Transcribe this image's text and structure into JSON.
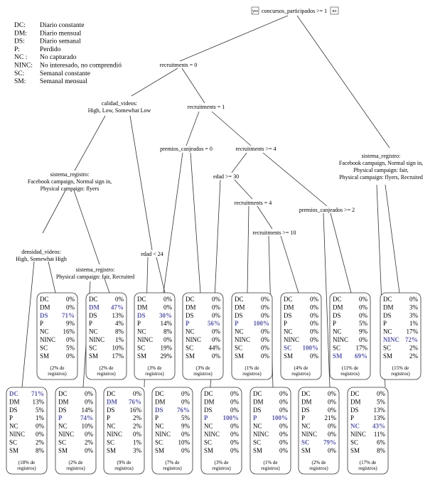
{
  "legend": [
    {
      "code": "DC:",
      "desc": "Diario constante"
    },
    {
      "code": "DM:",
      "desc": "Diario mensual"
    },
    {
      "code": "DS:",
      "desc": "Diario semanal"
    },
    {
      "code": "P:",
      "desc": "Perdido"
    },
    {
      "code": "NC :",
      "desc": "No capturado"
    },
    {
      "code": "NINC:",
      "desc": "No interesado, no comprendió"
    },
    {
      "code": "SC:",
      "desc": "Semanal constante"
    },
    {
      "code": "SM:",
      "desc": "Semanal mensual"
    }
  ],
  "root": {
    "label": "concursos_participados >= 1",
    "yes": "yes",
    "no": "no"
  },
  "splits": {
    "s1": "recruitments = 0",
    "s2a": "calidad_videos:",
    "s2b": "High, Low, Somewhat Low",
    "s3": "recruitments = 1",
    "s4": "premios_canjeados = 0",
    "s5": "recruitments >= 4",
    "s6a": "sistema_registro:",
    "s6b": "Facebook campaign, Normal sign in,",
    "s6c": "Physical campaign: flyers",
    "s7": "edad >= 30",
    "s8": "recruitments = 4",
    "s9": "recruitments >= 10",
    "s10": "premios_canjeados >= 2",
    "s11a": "sistema_registro:",
    "s11b": "Facebook campaign, Normal sign in,",
    "s11c": "Physical campaign: fair,",
    "s11d": "Physical campaign: flyers, Recruited",
    "s12a": "densidad_videos:",
    "s12b": "High, Somewhat High",
    "s13a": "sistema_registro:",
    "s13b": "Physical campaign: fair, Recruited",
    "s14": "edad < 24"
  },
  "upper_leaves": [
    {
      "rows": [
        [
          "DC",
          "0%"
        ],
        [
          "DM",
          "0%"
        ],
        [
          "DS",
          "71%"
        ],
        [
          "P",
          "9%"
        ],
        [
          "NC",
          "16%"
        ],
        [
          "NINC",
          "0%"
        ],
        [
          "SC",
          "5%"
        ],
        [
          "SM",
          "0%"
        ]
      ],
      "bold": 2,
      "foot1": "(2% de",
      "foot2": "registros)"
    },
    {
      "rows": [
        [
          "DC",
          "0%"
        ],
        [
          "DM",
          "47%"
        ],
        [
          "DS",
          "13%"
        ],
        [
          "P",
          "4%"
        ],
        [
          "NC",
          "8%"
        ],
        [
          "NINC",
          "1%"
        ],
        [
          "SC",
          "10%"
        ],
        [
          "SM",
          "17%"
        ]
      ],
      "bold": 1,
      "foot1": "(2% de",
      "foot2": "registros)"
    },
    {
      "rows": [
        [
          "DC",
          "0%"
        ],
        [
          "DM",
          "0%"
        ],
        [
          "DS",
          "30%"
        ],
        [
          "P",
          "14%"
        ],
        [
          "NC",
          "8%"
        ],
        [
          "NINC",
          "0%"
        ],
        [
          "SC",
          "19%"
        ],
        [
          "SM",
          "29%"
        ]
      ],
      "bold": 2,
      "foot1": "(3% de",
      "foot2": "registros)"
    },
    {
      "rows": [
        [
          "DC",
          "0%"
        ],
        [
          "DM",
          "0%"
        ],
        [
          "DS",
          "0%"
        ],
        [
          "P",
          "56%"
        ],
        [
          "NC",
          "0%"
        ],
        [
          "NINC",
          "0%"
        ],
        [
          "SC",
          "44%"
        ],
        [
          "SM",
          "0%"
        ]
      ],
      "bold": 3,
      "foot1": "(3% de",
      "foot2": "registros)"
    },
    {
      "rows": [
        [
          "DC",
          "0%"
        ],
        [
          "DM",
          "0%"
        ],
        [
          "DS",
          "0%"
        ],
        [
          "P",
          "100%"
        ],
        [
          "NC",
          "0%"
        ],
        [
          "NINC",
          "0%"
        ],
        [
          "SC",
          "0%"
        ],
        [
          "SM",
          "0%"
        ]
      ],
      "bold": 3,
      "foot1": "(1% de",
      "foot2": "registros)"
    },
    {
      "rows": [
        [
          "DC",
          "0%"
        ],
        [
          "DM",
          "0%"
        ],
        [
          "DS",
          "0%"
        ],
        [
          "P",
          "0%"
        ],
        [
          "NC",
          "0%"
        ],
        [
          "NINC",
          "0%"
        ],
        [
          "SC",
          "100%"
        ],
        [
          "SM",
          "0%"
        ]
      ],
      "bold": 6,
      "foot1": "(4% de",
      "foot2": "registros)"
    },
    {
      "rows": [
        [
          "DC",
          "0%"
        ],
        [
          "DM",
          "0%"
        ],
        [
          "DS",
          "0%"
        ],
        [
          "P",
          "5%"
        ],
        [
          "NC",
          "9%"
        ],
        [
          "NINC",
          "0%"
        ],
        [
          "SC",
          "17%"
        ],
        [
          "SM",
          "69%"
        ]
      ],
      "bold": 7,
      "foot1": "(11% de",
      "foot2": "registros)"
    },
    {
      "rows": [
        [
          "DC",
          "0%"
        ],
        [
          "DM",
          "3%"
        ],
        [
          "DS",
          "3%"
        ],
        [
          "P",
          "1%"
        ],
        [
          "NC",
          "17%"
        ],
        [
          "NINC",
          "72%"
        ],
        [
          "SC",
          "2%"
        ],
        [
          "SM",
          "2%"
        ]
      ],
      "bold": 5,
      "foot1": "(15% de",
      "foot2": "registros)"
    }
  ],
  "lower_leaves": [
    {
      "rows": [
        [
          "DC",
          "71%"
        ],
        [
          "DM",
          "13%"
        ],
        [
          "DS",
          "5%"
        ],
        [
          "P",
          "1%"
        ],
        [
          "NC",
          "0%"
        ],
        [
          "NINC",
          "0%"
        ],
        [
          "SC",
          "2%"
        ],
        [
          "SM",
          "8%"
        ]
      ],
      "bold": 0,
      "foot1": "(18% de",
      "foot2": "registros)"
    },
    {
      "rows": [
        [
          "DC",
          "0%"
        ],
        [
          "DM",
          "0%"
        ],
        [
          "DS",
          "14%"
        ],
        [
          "P",
          "74%"
        ],
        [
          "NC",
          "10%"
        ],
        [
          "NINC",
          "0%"
        ],
        [
          "SC",
          "2%"
        ],
        [
          "SM",
          "0%"
        ]
      ],
      "bold": 3,
      "foot1": "(2% de",
      "foot2": "registros)"
    },
    {
      "rows": [
        [
          "DC",
          "0%"
        ],
        [
          "DM",
          "76%"
        ],
        [
          "DS",
          "16%"
        ],
        [
          "P",
          "2%"
        ],
        [
          "NC",
          "2%"
        ],
        [
          "NINC",
          "0%"
        ],
        [
          "SC",
          "1%"
        ],
        [
          "SM",
          "3%"
        ]
      ],
      "bold": 1,
      "foot1": "(9% de",
      "foot2": "registros)"
    },
    {
      "rows": [
        [
          "DC",
          "0%"
        ],
        [
          "DM",
          "0%"
        ],
        [
          "DS",
          "76%"
        ],
        [
          "P",
          "5%"
        ],
        [
          "NC",
          "9%"
        ],
        [
          "NINC",
          "0%"
        ],
        [
          "SC",
          "10%"
        ],
        [
          "SM",
          "0%"
        ]
      ],
      "bold": 2,
      "foot1": "(7% de",
      "foot2": "registros)"
    },
    {
      "rows": [
        [
          "DC",
          "0%"
        ],
        [
          "DM",
          "0%"
        ],
        [
          "DS",
          "0%"
        ],
        [
          "P",
          "100%"
        ],
        [
          "NC",
          "0%"
        ],
        [
          "NINC",
          "0%"
        ],
        [
          "SC",
          "0%"
        ],
        [
          "SM",
          "0%"
        ]
      ],
      "bold": 3,
      "foot1": "(3% de",
      "foot2": "registros)"
    },
    {
      "rows": [
        [
          "DC",
          "0%"
        ],
        [
          "DM",
          "0%"
        ],
        [
          "DS",
          "0%"
        ],
        [
          "P",
          "100%"
        ],
        [
          "NC",
          "0%"
        ],
        [
          "NINC",
          "0%"
        ],
        [
          "SC",
          "0%"
        ],
        [
          "SM",
          "0%"
        ]
      ],
      "bold": 3,
      "foot1": "(1% de",
      "foot2": "registros)"
    },
    {
      "rows": [
        [
          "DC",
          "0%"
        ],
        [
          "DM",
          "0%"
        ],
        [
          "DS",
          "0%"
        ],
        [
          "P",
          "21%"
        ],
        [
          "NC",
          "0%"
        ],
        [
          "NINC",
          "0%"
        ],
        [
          "SC",
          "79%"
        ],
        [
          "SM",
          "0%"
        ]
      ],
      "bold": 6,
      "foot1": "(2% de",
      "foot2": "registros)"
    },
    {
      "rows": [
        [
          "DC",
          "0%"
        ],
        [
          "DM",
          "5%"
        ],
        [
          "DS",
          "13%"
        ],
        [
          "P",
          "13%"
        ],
        [
          "NC",
          "43%"
        ],
        [
          "NINC",
          "11%"
        ],
        [
          "SC",
          "6%"
        ],
        [
          "SM",
          "8%"
        ]
      ],
      "bold": 4,
      "foot1": "(17% de",
      "foot2": "registros)"
    }
  ]
}
